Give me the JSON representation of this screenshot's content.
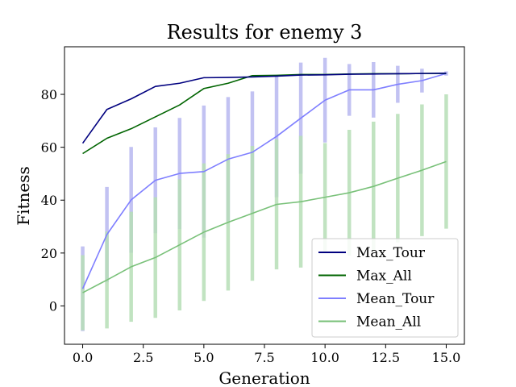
{
  "chart_data": {
    "type": "line",
    "title": "Results for enemy 3",
    "xlabel": "Generation",
    "ylabel": "Fitness",
    "xlim": [
      -0.75,
      15.75
    ],
    "ylim": [
      -14.5,
      98
    ],
    "xticks": [
      0.0,
      2.5,
      5.0,
      7.5,
      10.0,
      12.5,
      15.0
    ],
    "xtick_labels": [
      "0.0",
      "2.5",
      "5.0",
      "7.5",
      "10.0",
      "12.5",
      "15.0"
    ],
    "yticks": [
      0,
      20,
      40,
      60,
      80
    ],
    "ytick_labels": [
      "0",
      "20",
      "40",
      "60",
      "80"
    ],
    "grid": false,
    "legend_position": "lower-right",
    "x": [
      0,
      1,
      2,
      3,
      4,
      5,
      6,
      7,
      8,
      9,
      10,
      11,
      12,
      13,
      14,
      15
    ],
    "series": [
      {
        "name": "Max_Tour",
        "color": "#00007f",
        "values": [
          61.5,
          74.3,
          78.3,
          83.0,
          84.2,
          86.3,
          86.4,
          86.6,
          86.9,
          87.3,
          87.4,
          87.6,
          87.7,
          87.8,
          87.9,
          88.0
        ]
      },
      {
        "name": "Max_All",
        "color": "#006400",
        "values": [
          57.6,
          63.4,
          67.0,
          71.5,
          76.0,
          82.2,
          84.2,
          87.1,
          87.2,
          87.5,
          87.5,
          87.7,
          87.8,
          87.8,
          87.9,
          87.9
        ]
      },
      {
        "name": "Mean_Tour",
        "color": "#7f7fff",
        "errorbar_color": "#b8b8f0",
        "values": [
          6.5,
          27.0,
          40.1,
          47.5,
          50.1,
          50.8,
          55.5,
          58.1,
          64.1,
          71.0,
          77.8,
          81.7,
          81.7,
          83.8,
          85.2,
          87.9
        ],
        "error": [
          16.0,
          18.0,
          20.0,
          20.0,
          21.0,
          25.0,
          23.5,
          23.0,
          23.0,
          21.0,
          16.0,
          9.8,
          10.5,
          7.0,
          4.5,
          0.8
        ]
      },
      {
        "name": "Mean_All",
        "color": "#79c179",
        "errorbar_color": "#b7dfb7",
        "values": [
          5.0,
          9.8,
          14.8,
          18.3,
          23.1,
          27.9,
          31.6,
          35.0,
          38.4,
          39.4,
          41.1,
          42.8,
          45.2,
          48.3,
          51.3,
          54.6
        ],
        "error": [
          14.2,
          18.3,
          20.8,
          22.8,
          24.8,
          26.0,
          25.8,
          25.5,
          24.6,
          24.9,
          20.5,
          23.8,
          24.5,
          24.3,
          24.9,
          25.4
        ]
      }
    ]
  }
}
